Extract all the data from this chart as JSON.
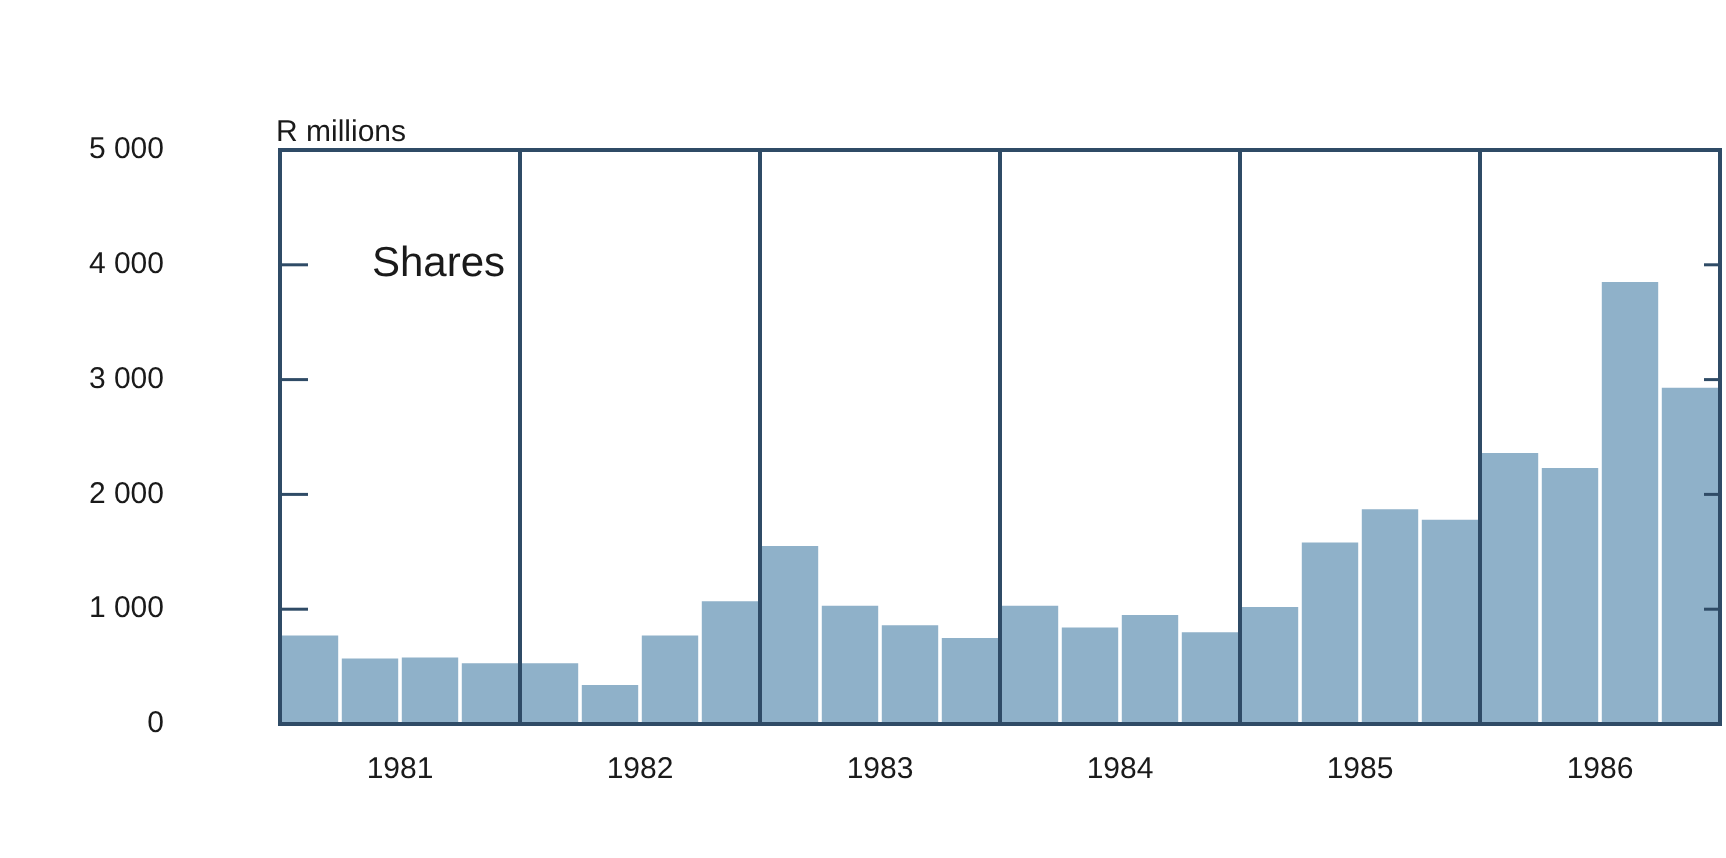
{
  "chart_data": {
    "type": "bar",
    "ylabel": "R millions",
    "annotations": [
      "Shares"
    ],
    "x": [
      1981.125,
      1981.375,
      1981.625,
      1981.875,
      1982.125,
      1982.375,
      1982.625,
      1982.875,
      1983.125,
      1983.375,
      1983.625,
      1983.875,
      1984.125,
      1984.375,
      1984.625,
      1984.875,
      1985.125,
      1985.375,
      1985.625,
      1985.875,
      1986.125,
      1986.375,
      1986.625,
      1986.875
    ],
    "values": [
      770,
      570,
      580,
      530,
      530,
      340,
      770,
      1070,
      1550,
      1030,
      860,
      750,
      1030,
      840,
      950,
      800,
      1020,
      1580,
      1870,
      1780,
      2360,
      2230,
      3850,
      2930
    ],
    "color": "#8fb1c9",
    "xlim": [
      1981,
      1987
    ],
    "xticks": [
      {
        "value": 1981.5,
        "label": "1981"
      },
      {
        "value": 1982.5,
        "label": "1982"
      },
      {
        "value": 1983.5,
        "label": "1983"
      },
      {
        "value": 1984.5,
        "label": "1984"
      },
      {
        "value": 1985.5,
        "label": "1985"
      },
      {
        "value": 1986.5,
        "label": "1986"
      }
    ],
    "ylim": [
      0,
      5000
    ],
    "yticks": [
      {
        "value": 0,
        "label": "0"
      },
      {
        "value": 1000,
        "label": "1 000"
      },
      {
        "value": 2000,
        "label": "2 000"
      },
      {
        "value": 3000,
        "label": "3 000"
      },
      {
        "value": 4000,
        "label": "4 000"
      },
      {
        "value": 5000,
        "label": "5 000"
      }
    ],
    "ref_lines": [
      {
        "axis": "x",
        "value": 1982,
        "color": "#2f4b66"
      },
      {
        "axis": "x",
        "value": 1983,
        "color": "#2f4b66"
      },
      {
        "axis": "x",
        "value": 1984,
        "color": "#2f4b66"
      },
      {
        "axis": "x",
        "value": 1985,
        "color": "#2f4b66"
      },
      {
        "axis": "x",
        "value": 1986,
        "color": "#2f4b66"
      }
    ],
    "grid": false,
    "legend": false
  }
}
